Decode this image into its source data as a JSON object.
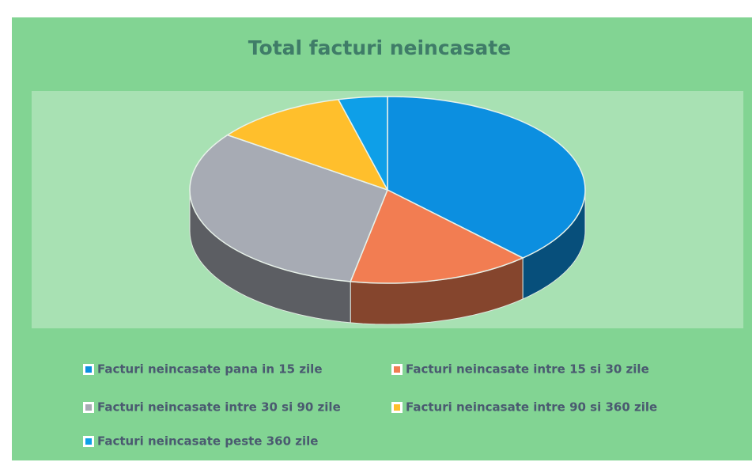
{
  "chart_data": {
    "type": "pie3d",
    "title": "Total facturi neincasate",
    "categories": [
      "Facturi neincasate pana in 15  zile",
      "Facturi neincasate intre 15 si 30  zile",
      "Facturi neincasate intre 30 si 90 zile",
      "Facturi neincasate intre 90 si 360 zile",
      "Facturi neincasate peste 360 zile"
    ],
    "values": [
      38,
      15,
      32,
      11,
      4
    ],
    "colors": [
      "#0c8fe0",
      "#f27d52",
      "#a7abb4",
      "#ffbf2c",
      "#0e9fe8"
    ],
    "legend": "bottom"
  }
}
